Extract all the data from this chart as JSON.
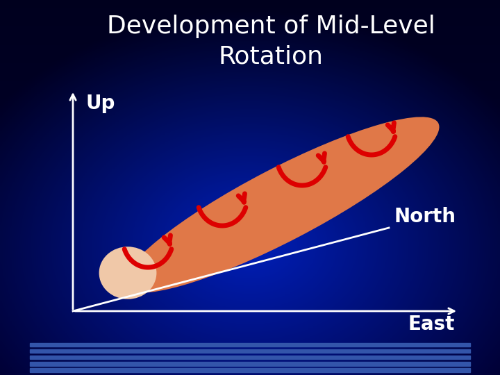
{
  "title_line1": "Development of Mid-Level",
  "title_line2": "Rotation",
  "title_color": "#FFFFFF",
  "title_fontsize": 26,
  "title_fontweight": "normal",
  "bg_color": "#000033",
  "axis_label_up": "Up",
  "axis_label_north": "North",
  "axis_label_east": "East",
  "label_color": "#FFFFFF",
  "label_fontsize": 20,
  "tube_color": "#E07848",
  "tube_end_color": "#F0C8A8",
  "arrow_color": "#DD0000",
  "stripe_color": "#3355AA",
  "stripe_count": 5,
  "axis_color": "#FFFFFF",
  "axis_lw": 2.0,
  "arrow_lw": 5.0,
  "arrow_size": 55
}
